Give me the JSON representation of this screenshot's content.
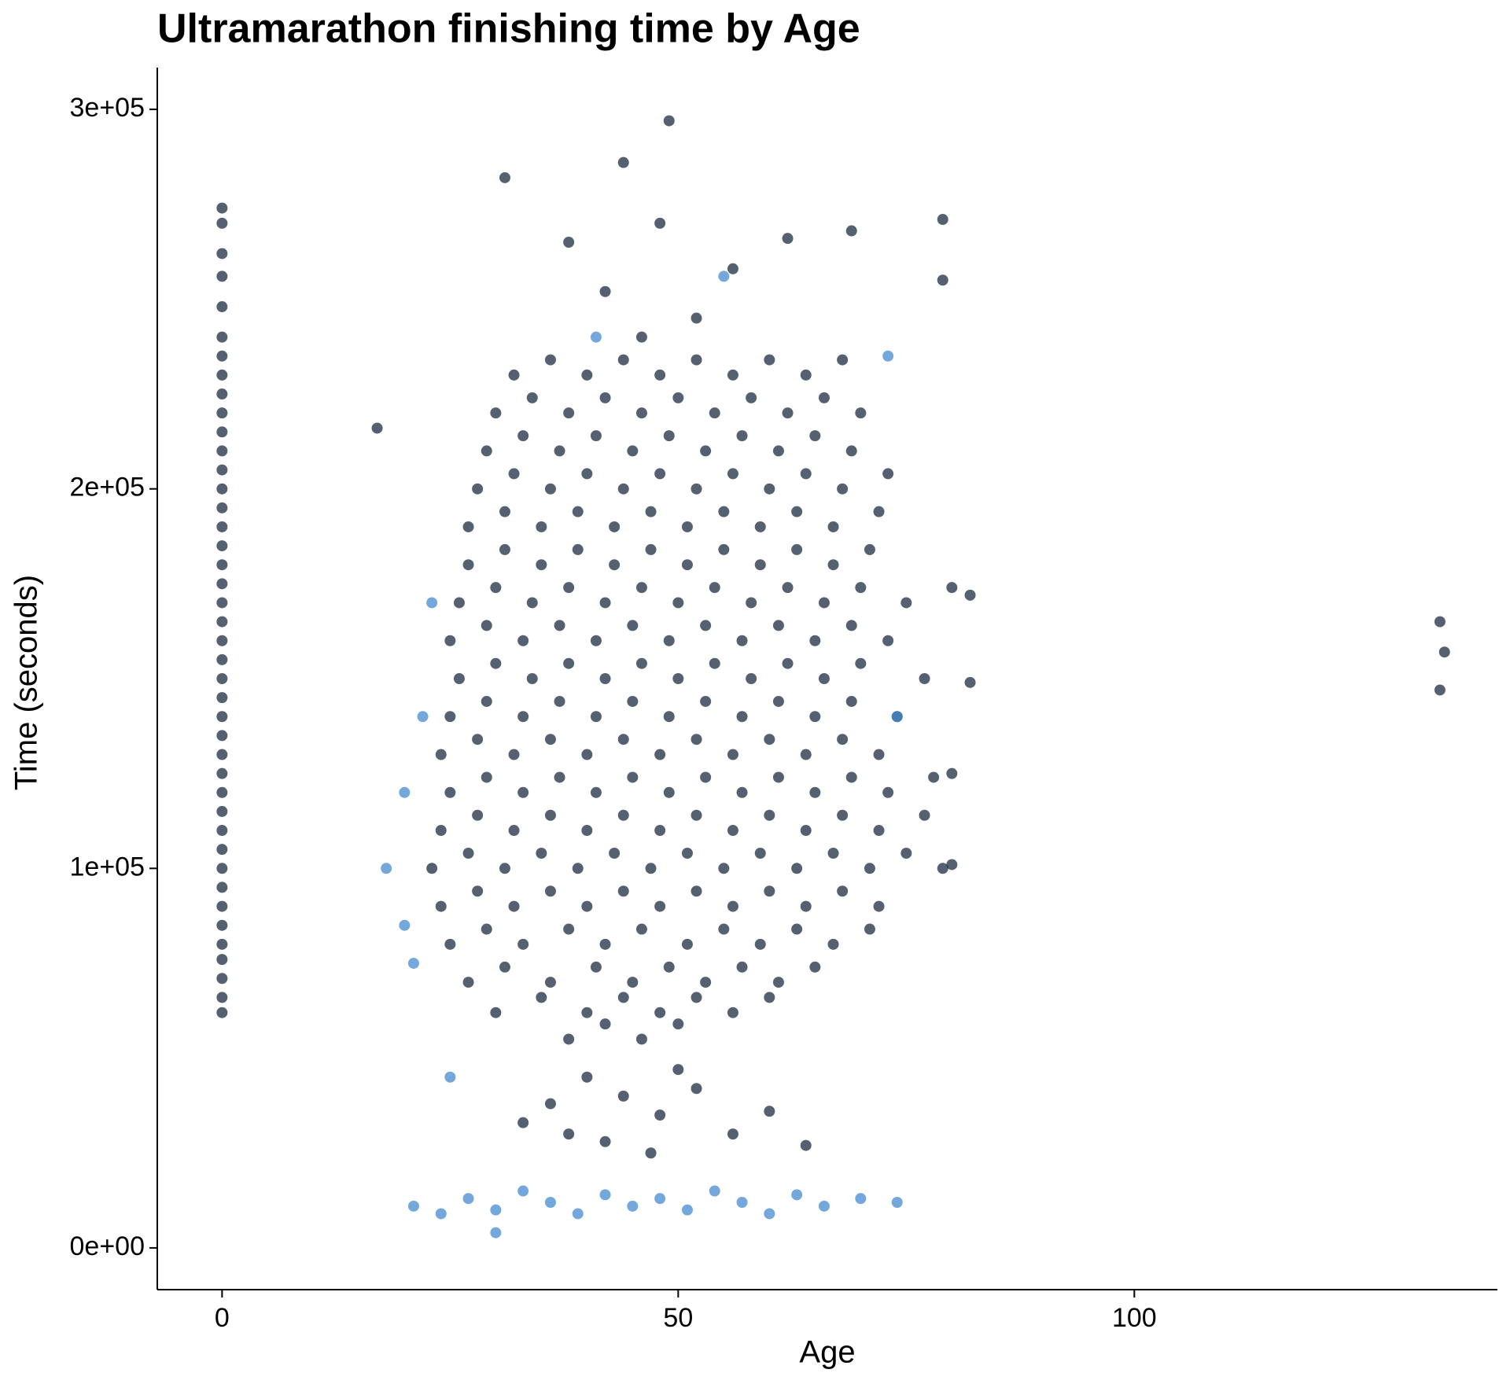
{
  "chart_data": {
    "type": "scatter",
    "title": "Ultramarathon finishing time by Age",
    "x_label": "Age",
    "y_label": "Time (seconds)",
    "xlim": [
      -7.1,
      139.8
    ],
    "ylim": [
      -11000,
      311000
    ],
    "xticks": [
      0,
      50,
      100
    ],
    "yticks": [
      {
        "value": 0,
        "label": "0e+00"
      },
      {
        "value": 100000,
        "label": "1e+05"
      },
      {
        "value": 200000,
        "label": "2e+05"
      },
      {
        "value": 300000,
        "label": "3e+05"
      }
    ],
    "grid": false,
    "series": [
      {
        "color": "#13233a",
        "x": [
          0,
          0,
          0,
          0,
          0,
          0,
          0,
          0,
          0,
          0,
          0,
          0,
          0,
          0,
          0,
          0,
          0,
          0,
          0,
          0,
          0,
          0,
          0,
          0,
          0,
          0,
          0,
          0,
          0,
          0,
          0,
          0,
          0,
          0,
          0,
          0,
          0,
          0,
          0,
          0,
          0,
          0,
          38,
          42,
          46,
          50,
          30,
          35,
          40,
          44,
          48,
          52,
          56,
          60,
          27,
          31,
          36,
          41,
          45,
          49,
          53,
          57,
          61,
          65,
          25,
          29,
          33,
          38,
          42,
          46,
          51,
          55,
          59,
          63,
          67,
          71,
          24,
          28,
          32,
          36,
          40,
          44,
          48,
          52,
          56,
          60,
          64,
          68,
          72,
          23,
          27,
          31,
          35,
          39,
          43,
          47,
          51,
          55,
          59,
          63,
          67,
          71,
          75,
          79,
          24,
          28,
          32,
          36,
          40,
          44,
          48,
          52,
          56,
          60,
          64,
          68,
          72,
          77,
          25,
          29,
          33,
          37,
          41,
          45,
          49,
          53,
          57,
          61,
          65,
          69,
          73,
          78,
          24,
          28,
          32,
          36,
          40,
          44,
          48,
          52,
          56,
          60,
          64,
          68,
          72,
          25,
          29,
          33,
          37,
          41,
          45,
          49,
          53,
          57,
          61,
          65,
          69,
          74,
          26,
          30,
          34,
          38,
          42,
          46,
          50,
          54,
          58,
          62,
          66,
          70,
          77,
          25,
          29,
          33,
          37,
          41,
          45,
          49,
          53,
          57,
          61,
          65,
          69,
          73,
          26,
          30,
          34,
          38,
          42,
          46,
          50,
          54,
          58,
          62,
          66,
          70,
          75,
          80,
          27,
          31,
          35,
          39,
          43,
          47,
          51,
          55,
          59,
          63,
          67,
          71,
          27,
          31,
          35,
          39,
          43,
          47,
          51,
          55,
          59,
          63,
          67,
          72,
          28,
          32,
          36,
          40,
          44,
          48,
          52,
          56,
          60,
          64,
          68,
          73,
          29,
          33,
          37,
          41,
          45,
          49,
          53,
          57,
          61,
          65,
          69,
          30,
          34,
          38,
          42,
          46,
          50,
          54,
          58,
          62,
          66,
          70,
          32,
          36,
          40,
          44,
          48,
          52,
          56,
          60,
          64,
          68,
          46,
          52,
          42,
          56,
          38,
          62,
          48,
          44,
          49,
          31,
          79,
          79,
          69,
          17,
          133.5,
          134,
          133.5,
          82,
          82,
          80,
          80,
          40,
          44,
          48,
          36,
          52,
          56,
          42,
          33,
          60,
          47,
          64,
          38,
          50
        ],
        "values": [
          62000,
          66000,
          71000,
          76000,
          80000,
          85000,
          90000,
          95000,
          100000,
          105000,
          110000,
          115000,
          120000,
          125000,
          130000,
          135000,
          140000,
          145000,
          150000,
          155000,
          160000,
          165000,
          170000,
          175000,
          180000,
          185000,
          190000,
          195000,
          200000,
          205000,
          210000,
          215000,
          220000,
          225000,
          230000,
          235000,
          240000,
          248000,
          256000,
          262000,
          270000,
          274000,
          55000,
          59000,
          55000,
          59000,
          62000,
          66000,
          62000,
          66000,
          62000,
          66000,
          62000,
          66000,
          70000,
          74000,
          70000,
          74000,
          70000,
          74000,
          70000,
          74000,
          70000,
          74000,
          80000,
          84000,
          80000,
          84000,
          80000,
          84000,
          80000,
          84000,
          80000,
          84000,
          80000,
          84000,
          90000,
          94000,
          90000,
          94000,
          90000,
          94000,
          90000,
          94000,
          90000,
          94000,
          90000,
          94000,
          90000,
          100000,
          104000,
          100000,
          104000,
          100000,
          104000,
          100000,
          104000,
          100000,
          104000,
          100000,
          104000,
          100000,
          104000,
          100000,
          110000,
          114000,
          110000,
          114000,
          110000,
          114000,
          110000,
          114000,
          110000,
          114000,
          110000,
          114000,
          110000,
          114000,
          120000,
          124000,
          120000,
          124000,
          120000,
          124000,
          120000,
          124000,
          120000,
          124000,
          120000,
          124000,
          120000,
          124000,
          130000,
          134000,
          130000,
          134000,
          130000,
          134000,
          130000,
          134000,
          130000,
          134000,
          130000,
          134000,
          130000,
          140000,
          144000,
          140000,
          144000,
          140000,
          144000,
          140000,
          144000,
          140000,
          144000,
          140000,
          144000,
          140000,
          150000,
          154000,
          150000,
          154000,
          150000,
          154000,
          150000,
          154000,
          150000,
          154000,
          150000,
          154000,
          150000,
          160000,
          164000,
          160000,
          164000,
          160000,
          164000,
          160000,
          164000,
          160000,
          164000,
          160000,
          164000,
          160000,
          170000,
          174000,
          170000,
          174000,
          170000,
          174000,
          170000,
          174000,
          170000,
          174000,
          170000,
          174000,
          170000,
          174000,
          180000,
          184000,
          180000,
          184000,
          180000,
          184000,
          180000,
          184000,
          180000,
          184000,
          180000,
          184000,
          190000,
          194000,
          190000,
          194000,
          190000,
          194000,
          190000,
          194000,
          190000,
          194000,
          190000,
          194000,
          200000,
          204000,
          200000,
          204000,
          200000,
          204000,
          200000,
          204000,
          200000,
          204000,
          200000,
          204000,
          210000,
          214000,
          210000,
          214000,
          210000,
          214000,
          210000,
          214000,
          210000,
          214000,
          210000,
          220000,
          224000,
          220000,
          224000,
          220000,
          224000,
          220000,
          224000,
          220000,
          224000,
          220000,
          230000,
          234000,
          230000,
          234000,
          230000,
          234000,
          230000,
          234000,
          230000,
          234000,
          240000,
          245000,
          252000,
          258000,
          265000,
          266000,
          270000,
          286000,
          297000,
          282000,
          271000,
          255000,
          268000,
          216000,
          165000,
          157000,
          147000,
          172000,
          149000,
          125000,
          101000,
          45000,
          40000,
          35000,
          38000,
          42000,
          30000,
          28000,
          33000,
          36000,
          25000,
          27000,
          30000,
          47000
        ]
      },
      {
        "color": "#3f86d0",
        "x": [
          21,
          24,
          27,
          30,
          33,
          36,
          39,
          42,
          45,
          48,
          51,
          54,
          57,
          60,
          63,
          66,
          70,
          74,
          30,
          18,
          20,
          21,
          23,
          22,
          20,
          25,
          41,
          73,
          74,
          55
        ],
        "values": [
          11000,
          9000,
          13000,
          10000,
          15000,
          12000,
          9000,
          14000,
          11000,
          13000,
          10000,
          15000,
          12000,
          9000,
          14000,
          11000,
          13000,
          12000,
          4000,
          100000,
          85000,
          75000,
          170000,
          140000,
          120000,
          45000,
          240000,
          235000,
          140000,
          256000
        ]
      }
    ]
  }
}
